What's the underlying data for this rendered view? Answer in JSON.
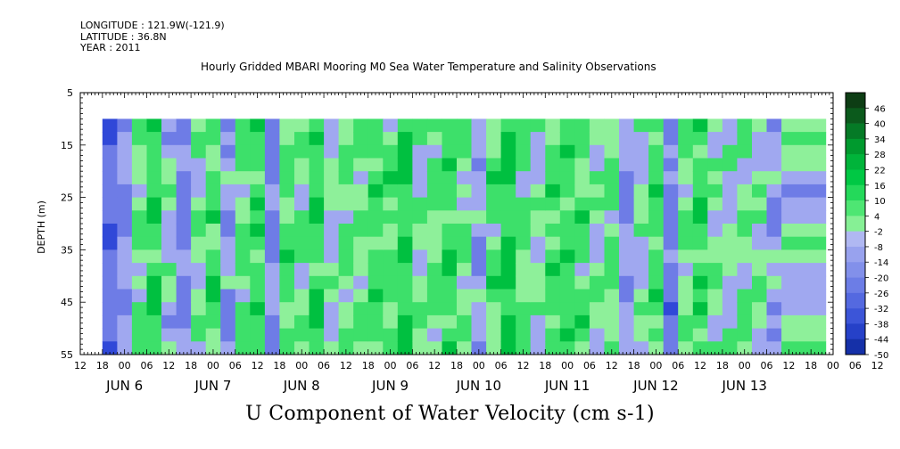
{
  "header": {
    "longitude": "LONGITUDE : 121.9W(-121.9)",
    "latitude": "LATITUDE : 36.8N",
    "year": "YEAR : 2011"
  },
  "plot_title": "Hourly Gridded MBARI Mooring M0 Sea Water Temperature and Salinity Observations",
  "footer_title": "U Component of Water Velocity (cm s-1)",
  "chart_data": {
    "type": "heatmap",
    "title": "Hourly Gridded MBARI Mooring M0 Sea Water Temperature and Salinity Observations",
    "variable": "U Component of Water Velocity (cm s-1)",
    "ylabel": "DEPTH (m)",
    "xlabel": "",
    "x_range_hours_from_jun5_12": [
      0,
      204
    ],
    "data_start_hour": 6,
    "ylim": [
      55,
      5
    ],
    "y_ticks": [
      5,
      15,
      25,
      35,
      45,
      55
    ],
    "data_depth_range": [
      10,
      55
    ],
    "x_hour_ticks": [
      "12",
      "18",
      "00",
      "06",
      "12",
      "18",
      "00",
      "06",
      "12",
      "18",
      "00",
      "06",
      "12",
      "18",
      "00",
      "06",
      "12",
      "18",
      "00",
      "06",
      "12",
      "18",
      "00",
      "06",
      "12",
      "18",
      "00",
      "06",
      "12",
      "18",
      "00",
      "06",
      "12",
      "18",
      "00",
      "06",
      "12"
    ],
    "x_day_labels": [
      {
        "label": "JUN  6",
        "hour": 12
      },
      {
        "label": "JUN  7",
        "hour": 36
      },
      {
        "label": "JUN  8",
        "hour": 60
      },
      {
        "label": "JUN  9",
        "hour": 84
      },
      {
        "label": "JUN 10",
        "hour": 108
      },
      {
        "label": "JUN 11",
        "hour": 132
      },
      {
        "label": "JUN 12",
        "hour": 156
      },
      {
        "label": "JUN 13",
        "hour": 180
      }
    ],
    "colorbar_levels": [
      48,
      46,
      40,
      34,
      28,
      22,
      16,
      10,
      4,
      -2,
      -8,
      -14,
      -20,
      -26,
      -32,
      -38,
      -44,
      -50
    ],
    "colorbar_labels": [
      "46",
      "40",
      "34",
      "28",
      "22",
      "16",
      "10",
      "4",
      "-2",
      "-8",
      "-14",
      "-20",
      "-26",
      "-32",
      "-38",
      "-44",
      "-50"
    ],
    "colorbar_top_swatch": "#0d3d14",
    "colors": {
      "strong_positive": "#00c040",
      "positive": "#3de06a",
      "weak_positive": "#8ef09a",
      "weak_negative": "#a0a8f0",
      "negative": "#6e7ce6",
      "strong_negative": "#3048d8",
      "missing": "#ffffff"
    },
    "column_profile": [
      {
        "hour": 6,
        "v": -14
      },
      {
        "hour": 10,
        "v": -6
      },
      {
        "hour": 14,
        "v": 6
      },
      {
        "hour": 18,
        "v": 16
      },
      {
        "hour": 22,
        "v": 2
      },
      {
        "hour": 26,
        "v": -10
      },
      {
        "hour": 30,
        "v": 4
      },
      {
        "hour": 34,
        "v": 12
      },
      {
        "hour": 38,
        "v": -4
      },
      {
        "hour": 42,
        "v": 8
      },
      {
        "hour": 46,
        "v": 14
      },
      {
        "hour": 50,
        "v": -8
      },
      {
        "hour": 54,
        "v": 10
      },
      {
        "hour": 58,
        "v": 6
      },
      {
        "hour": 62,
        "v": 14
      },
      {
        "hour": 66,
        "v": 2
      },
      {
        "hour": 70,
        "v": 8
      },
      {
        "hour": 74,
        "v": 6
      },
      {
        "hour": 78,
        "v": 12
      },
      {
        "hour": 82,
        "v": 10
      },
      {
        "hour": 86,
        "v": 16
      },
      {
        "hour": 90,
        "v": 4
      },
      {
        "hour": 94,
        "v": 8
      },
      {
        "hour": 98,
        "v": 14
      },
      {
        "hour": 102,
        "v": 6
      },
      {
        "hour": 106,
        "v": -4
      },
      {
        "hour": 110,
        "v": 10
      },
      {
        "hour": 114,
        "v": 18
      },
      {
        "hour": 118,
        "v": 8
      },
      {
        "hour": 122,
        "v": 2
      },
      {
        "hour": 126,
        "v": 12
      },
      {
        "hour": 130,
        "v": 14
      },
      {
        "hour": 134,
        "v": 10
      },
      {
        "hour": 138,
        "v": 4
      },
      {
        "hour": 142,
        "v": 8
      },
      {
        "hour": 146,
        "v": -6
      },
      {
        "hour": 150,
        "v": 2
      },
      {
        "hour": 154,
        "v": 12
      },
      {
        "hour": 158,
        "v": -10
      },
      {
        "hour": 162,
        "v": 6
      },
      {
        "hour": 166,
        "v": 14
      },
      {
        "hour": 170,
        "v": 4
      },
      {
        "hour": 174,
        "v": 2
      },
      {
        "hour": 178,
        "v": 6
      },
      {
        "hour": 182,
        "v": 4
      },
      {
        "hour": 186,
        "v": -4
      },
      {
        "hour": 190,
        "v": 2
      }
    ]
  }
}
